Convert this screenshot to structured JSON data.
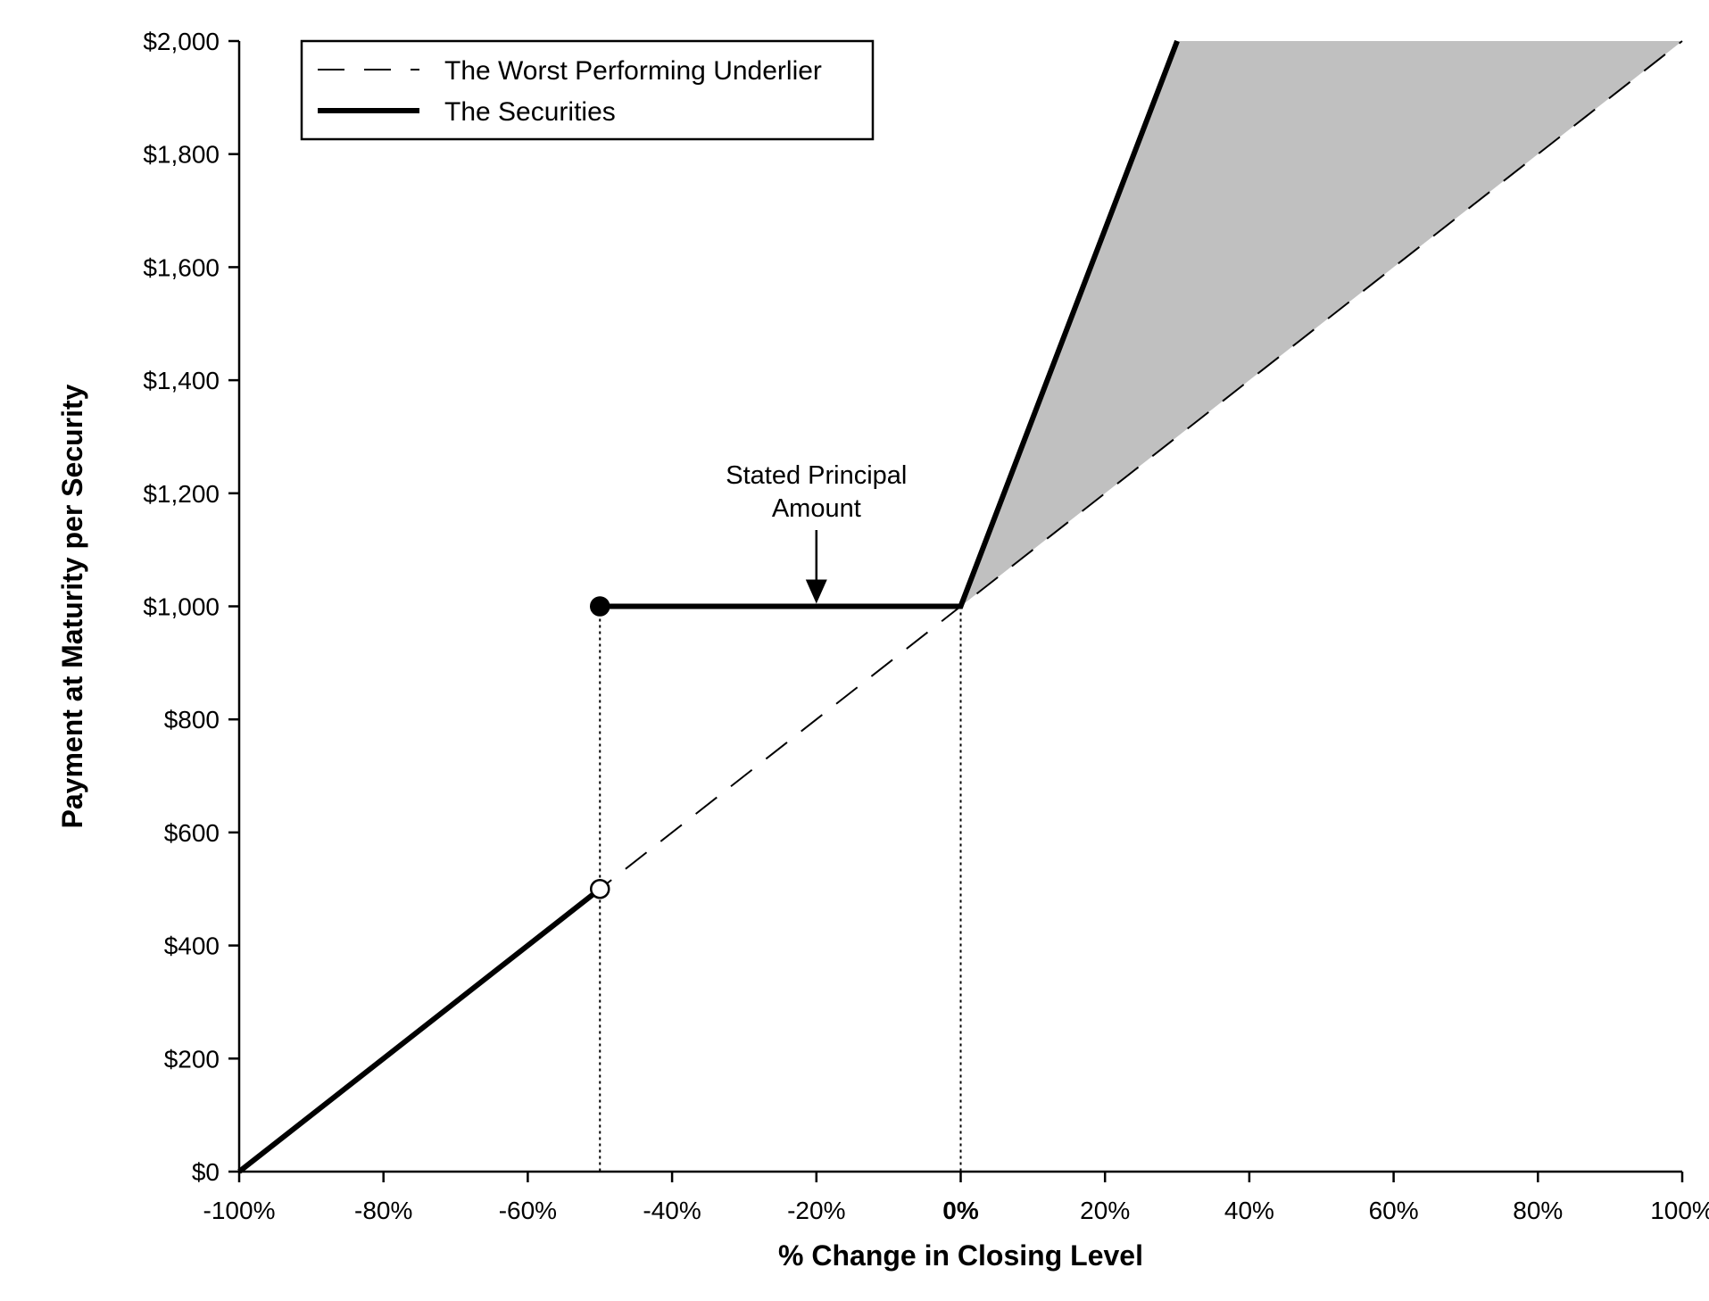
{
  "chart_data": {
    "type": "line",
    "title": "",
    "xlabel": "% Change in Closing Level",
    "ylabel": "Payment at Maturity per Security",
    "xlim": [
      -100,
      100
    ],
    "ylim": [
      0,
      2000
    ],
    "x_ticks": [
      -100,
      -80,
      -60,
      -40,
      -20,
      0,
      20,
      40,
      60,
      80,
      100
    ],
    "x_tick_labels": [
      "-100%",
      "-80%",
      "-60%",
      "-40%",
      "-20%",
      "0%",
      "20%",
      "40%",
      "60%",
      "80%",
      "100%"
    ],
    "y_ticks": [
      0,
      200,
      400,
      600,
      800,
      1000,
      1200,
      1400,
      1600,
      1800,
      2000
    ],
    "y_tick_labels": [
      "$0",
      "$200",
      "$400",
      "$600",
      "$800",
      "$1,000",
      "$1,200",
      "$1,400",
      "$1,600",
      "$1,800",
      "$2,000"
    ],
    "grid": false,
    "legend_position": "top-left",
    "series": [
      {
        "name": "The Worst Performing Underlier",
        "style": "dashed",
        "color": "#000000",
        "x": [
          -100,
          100
        ],
        "y": [
          0,
          2000
        ]
      },
      {
        "name": "The Securities",
        "style": "solid-thick",
        "color": "#000000",
        "segments": [
          {
            "x": [
              -100,
              -50
            ],
            "y": [
              0,
              500
            ]
          },
          {
            "x": [
              -50,
              0,
              30
            ],
            "y": [
              1000,
              1000,
              2000
            ]
          }
        ]
      }
    ],
    "markers": [
      {
        "x": -50,
        "y": 1000,
        "fill": "filled"
      },
      {
        "x": -50,
        "y": 500,
        "fill": "open"
      }
    ],
    "vertical_reference_lines": [
      {
        "x": -50,
        "y_top": 1000,
        "style": "dotted"
      },
      {
        "x": 0,
        "y_top": 1000,
        "style": "dotted"
      }
    ],
    "shaded_region": {
      "color": "#c0c0c0",
      "polygon": [
        [
          0,
          1000
        ],
        [
          30,
          2000
        ],
        [
          100,
          2000
        ]
      ]
    },
    "annotations": [
      {
        "lines": [
          "Stated Principal",
          "Amount"
        ],
        "arrow_to": {
          "x": -20,
          "y": 1000
        }
      }
    ]
  }
}
